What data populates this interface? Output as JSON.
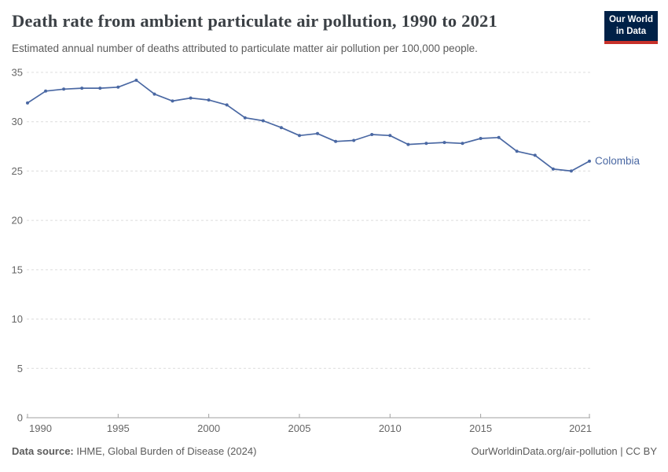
{
  "header": {
    "logo": {
      "line1": "Our World",
      "line2": "in Data"
    }
  },
  "chart_data": {
    "type": "line",
    "title": "Death rate from ambient particulate air pollution, 1990 to 2021",
    "subtitle": "Estimated annual number of deaths attributed to particulate matter air pollution per 100,000 people.",
    "x": [
      1990,
      1991,
      1992,
      1993,
      1994,
      1995,
      1996,
      1997,
      1998,
      1999,
      2000,
      2001,
      2002,
      2003,
      2004,
      2005,
      2006,
      2007,
      2008,
      2009,
      2010,
      2011,
      2012,
      2013,
      2014,
      2015,
      2016,
      2017,
      2018,
      2019,
      2020,
      2021
    ],
    "series": [
      {
        "name": "Colombia",
        "color": "#4A68A3",
        "values": [
          31.9,
          33.1,
          33.3,
          33.4,
          33.4,
          33.5,
          34.2,
          32.8,
          32.1,
          32.4,
          32.2,
          31.7,
          30.4,
          30.1,
          29.4,
          28.6,
          28.8,
          28.0,
          28.1,
          28.7,
          28.6,
          27.7,
          27.8,
          27.9,
          27.8,
          28.3,
          28.4,
          27.0,
          26.6,
          25.2,
          25.0,
          26.0
        ]
      }
    ],
    "xlim": [
      1990,
      2021
    ],
    "ylim": [
      0,
      35
    ],
    "x_ticks": [
      1990,
      1995,
      2000,
      2005,
      2010,
      2015,
      2021
    ],
    "y_ticks": [
      0,
      5,
      10,
      15,
      20,
      25,
      30,
      35
    ],
    "grid": "horizontal-dashed",
    "legend": "end-of-line-label",
    "end_label": "Colombia"
  },
  "footer": {
    "datasource_label": "Data source:",
    "datasource_value": " IHME, Global Burden of Disease (2024)",
    "credit": "OurWorldinData.org/air-pollution | CC BY"
  },
  "colors": {
    "line": "#4A68A3",
    "grid": "#dcdcdc",
    "axis": "#a1a1a1",
    "tick_text": "#666666",
    "title_text": "#3b4045",
    "subtitle_text": "#5b5b5b",
    "logo_bg": "#002147",
    "logo_bar": "#C7312A"
  }
}
